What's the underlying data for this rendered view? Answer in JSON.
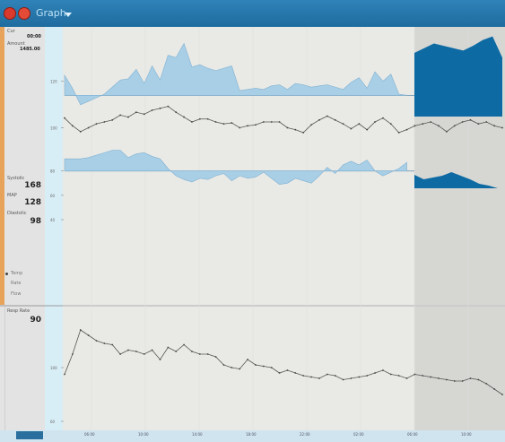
{
  "window": {
    "title": "Graph"
  },
  "colors": {
    "titlebar": "#2374a7",
    "fill_light": "#a8cfe6",
    "fill_dark": "#0d6aa3",
    "sidebar_accent": "#e8a35a",
    "line": "#555555"
  },
  "icons": [
    "app-logo-icon",
    "app-logo-icon",
    "chevron-down-icon"
  ],
  "sidebar": {
    "top_label": "Cur",
    "top_value": "00:00",
    "mid_label": "Amount",
    "mid_value": "1485.00",
    "pulse_label": "Systolic",
    "pulse_value": "168",
    "map_label": "MAP",
    "map_value": "128",
    "dia_label": "Diastolic",
    "dia_value": "98",
    "legend": [
      {
        "label": "Temp"
      },
      {
        "label": "Rate"
      },
      {
        "label": "Flow"
      }
    ],
    "lower_label": "Resp Rate",
    "lower_value": "90"
  },
  "chart_data": [
    {
      "type": "area",
      "baseline": 108,
      "x": [
        0,
        1,
        2,
        3,
        4,
        5,
        6,
        7,
        8,
        9,
        10,
        11,
        12,
        13,
        14,
        15,
        16,
        17,
        18,
        19,
        20,
        21,
        22,
        23,
        24,
        25,
        26,
        27,
        28,
        29,
        30,
        31,
        32,
        33,
        34,
        35,
        36,
        37,
        38,
        39,
        40,
        41,
        42,
        43,
        44,
        45,
        46,
        47,
        48,
        49,
        50,
        51,
        52,
        53,
        54,
        55
      ],
      "y": [
        125,
        114,
        100,
        103,
        106,
        109,
        115,
        121,
        122,
        130,
        118,
        133,
        121,
        142,
        140,
        152,
        132,
        134,
        131,
        129,
        131,
        133,
        112,
        113,
        114,
        113,
        116,
        117,
        113,
        118,
        117,
        115,
        116,
        117,
        115,
        113,
        119,
        123,
        114,
        128,
        120,
        126,
        109,
        108,
        116,
        113,
        110,
        111,
        112,
        114,
        112,
        110,
        111,
        112,
        110,
        111
      ],
      "highlight_from_index": 44,
      "highlight_y": [
        144,
        148,
        152,
        150,
        148,
        146,
        150,
        155,
        158,
        140
      ],
      "ylim": [
        90,
        160
      ],
      "ticks": [
        "120"
      ]
    },
    {
      "type": "line",
      "x": [
        0,
        1,
        2,
        3,
        4,
        5,
        6,
        7,
        8,
        9,
        10,
        11,
        12,
        13,
        14,
        15,
        16,
        17,
        18,
        19,
        20,
        21,
        22,
        23,
        24,
        25,
        26,
        27,
        28,
        29,
        30,
        31,
        32,
        33,
        34,
        35,
        36,
        37,
        38,
        39,
        40,
        41,
        42,
        43,
        44,
        45,
        46,
        47,
        48,
        49,
        50,
        51,
        52,
        53,
        54,
        55
      ],
      "y": [
        110,
        102,
        96,
        100,
        104,
        106,
        108,
        113,
        111,
        116,
        114,
        118,
        120,
        122,
        116,
        111,
        106,
        109,
        109,
        106,
        104,
        105,
        100,
        102,
        103,
        106,
        106,
        106,
        100,
        98,
        95,
        103,
        108,
        112,
        108,
        104,
        99,
        104,
        98,
        106,
        110,
        104,
        95,
        98,
        102,
        104,
        106,
        102,
        96,
        102,
        106,
        108,
        104,
        106,
        102,
        100
      ],
      "ylim": [
        70,
        130
      ],
      "ticks": [
        "100"
      ]
    },
    {
      "type": "area",
      "baseline": 80,
      "x": [
        0,
        1,
        2,
        3,
        4,
        5,
        6,
        7,
        8,
        9,
        10,
        11,
        12,
        13,
        14,
        15,
        16,
        17,
        18,
        19,
        20,
        21,
        22,
        23,
        24,
        25,
        26,
        27,
        28,
        29,
        30,
        31,
        32,
        33,
        34,
        35,
        36,
        37,
        38,
        39,
        40,
        41,
        42,
        43,
        44,
        45,
        46,
        47,
        48,
        49,
        50,
        51,
        52,
        53,
        54,
        55
      ],
      "y": [
        90,
        90,
        90,
        91,
        93,
        95,
        97,
        97,
        91,
        94,
        95,
        92,
        90,
        82,
        76,
        73,
        71,
        74,
        73,
        76,
        78,
        72,
        76,
        74,
        75,
        79,
        74,
        69,
        70,
        74,
        72,
        70,
        76,
        83,
        78,
        85,
        88,
        85,
        89,
        80,
        76,
        79,
        82,
        87,
        91,
        84,
        80,
        82,
        86,
        85,
        83,
        79,
        78,
        80,
        82,
        79
      ],
      "ylim": [
        40,
        110
      ],
      "ticks": [
        "80",
        "60",
        "40"
      ]
    },
    {
      "type": "line",
      "x": [
        0,
        1,
        2,
        3,
        4,
        5,
        6,
        7,
        8,
        9,
        10,
        11,
        12,
        13,
        14,
        15,
        16,
        17,
        18,
        19,
        20,
        21,
        22,
        23,
        24,
        25,
        26,
        27,
        28,
        29,
        30,
        31,
        32,
        33,
        34,
        35,
        36,
        37,
        38,
        39,
        40,
        41,
        42,
        43,
        44,
        45,
        46,
        47,
        48,
        49,
        50,
        51,
        52,
        53,
        54,
        55
      ],
      "y": [
        95,
        110,
        128,
        124,
        120,
        118,
        117,
        110,
        113,
        112,
        110,
        113,
        106,
        115,
        112,
        117,
        112,
        110,
        110,
        108,
        102,
        100,
        99,
        106,
        102,
        101,
        100,
        96,
        98,
        96,
        94,
        93,
        92,
        95,
        94,
        91,
        92,
        93,
        94,
        96,
        98,
        95,
        94,
        92,
        95,
        94,
        93,
        92,
        91,
        90,
        90,
        92,
        91,
        88,
        84,
        80
      ],
      "ylim": [
        60,
        140
      ],
      "ticks": [
        "100",
        "60"
      ],
      "lower_label": "Resp Rate"
    }
  ],
  "time_axis": {
    "labels": [
      "06:00",
      "10:00",
      "14:00",
      "18:00",
      "22:00",
      "02:00",
      "06:00",
      "10:00"
    ]
  }
}
